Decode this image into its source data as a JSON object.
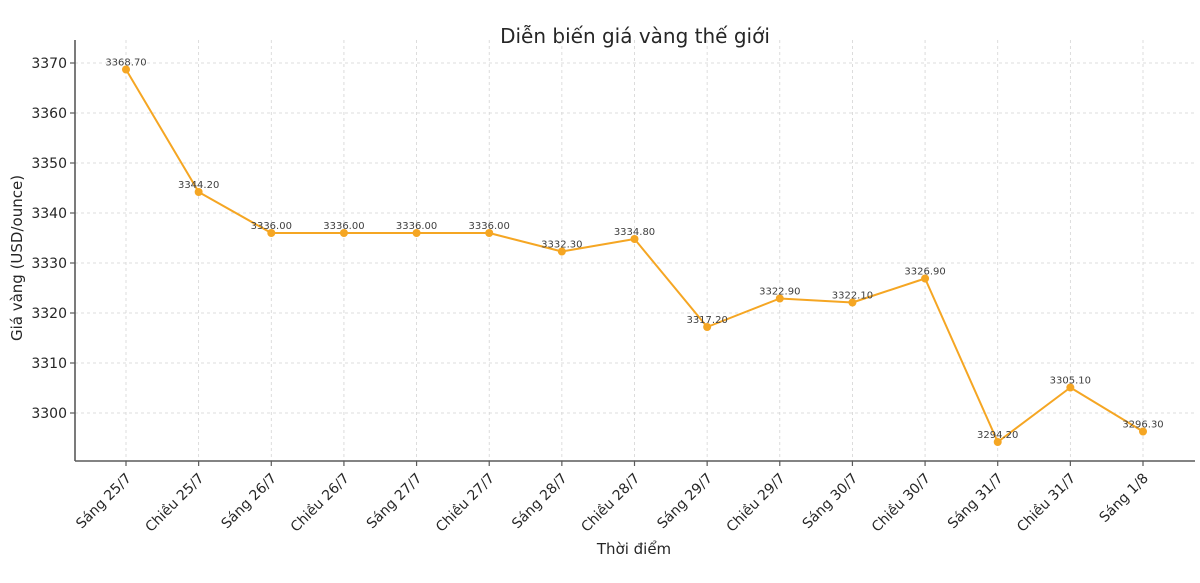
{
  "chart_data": {
    "type": "line",
    "title": "Diễn biến giá vàng thế giới",
    "xlabel": "Thời điểm",
    "ylabel": "Giá vàng (USD/ounce)",
    "categories": [
      "Sáng 25/7",
      "Chiều 25/7",
      "Sáng 26/7",
      "Chiều 26/7",
      "Sáng 27/7",
      "Chiều 27/7",
      "Sáng 28/7",
      "Chiều 28/7",
      "Sáng 29/7",
      "Chiều 29/7",
      "Sáng 30/7",
      "Chiều 30/7",
      "Sáng 31/7",
      "Chiều 31/7",
      "Sáng 1/8"
    ],
    "series": [
      {
        "name": "Giá vàng",
        "color": "#f5a623",
        "values": [
          3368.7,
          3344.2,
          3336.0,
          3336.0,
          3336.0,
          3336.0,
          3332.3,
          3334.8,
          3317.2,
          3322.9,
          3322.1,
          3326.9,
          3294.2,
          3305.1,
          3296.3
        ],
        "labels": [
          "3368.70",
          "3344.20",
          "3336.00",
          "3336.00",
          "3336.00",
          "3336.00",
          "3332.30",
          "3334.80",
          "3317.20",
          "3322.90",
          "3322.10",
          "3326.90",
          "3294.20",
          "3305.10",
          "3296.30"
        ]
      }
    ],
    "yticks": [
      "3300",
      "3310",
      "3320",
      "3330",
      "3340",
      "3350",
      "3360",
      "3370"
    ],
    "ylim": [
      3290.4,
      3374.6
    ],
    "grid": true,
    "legend": null
  }
}
